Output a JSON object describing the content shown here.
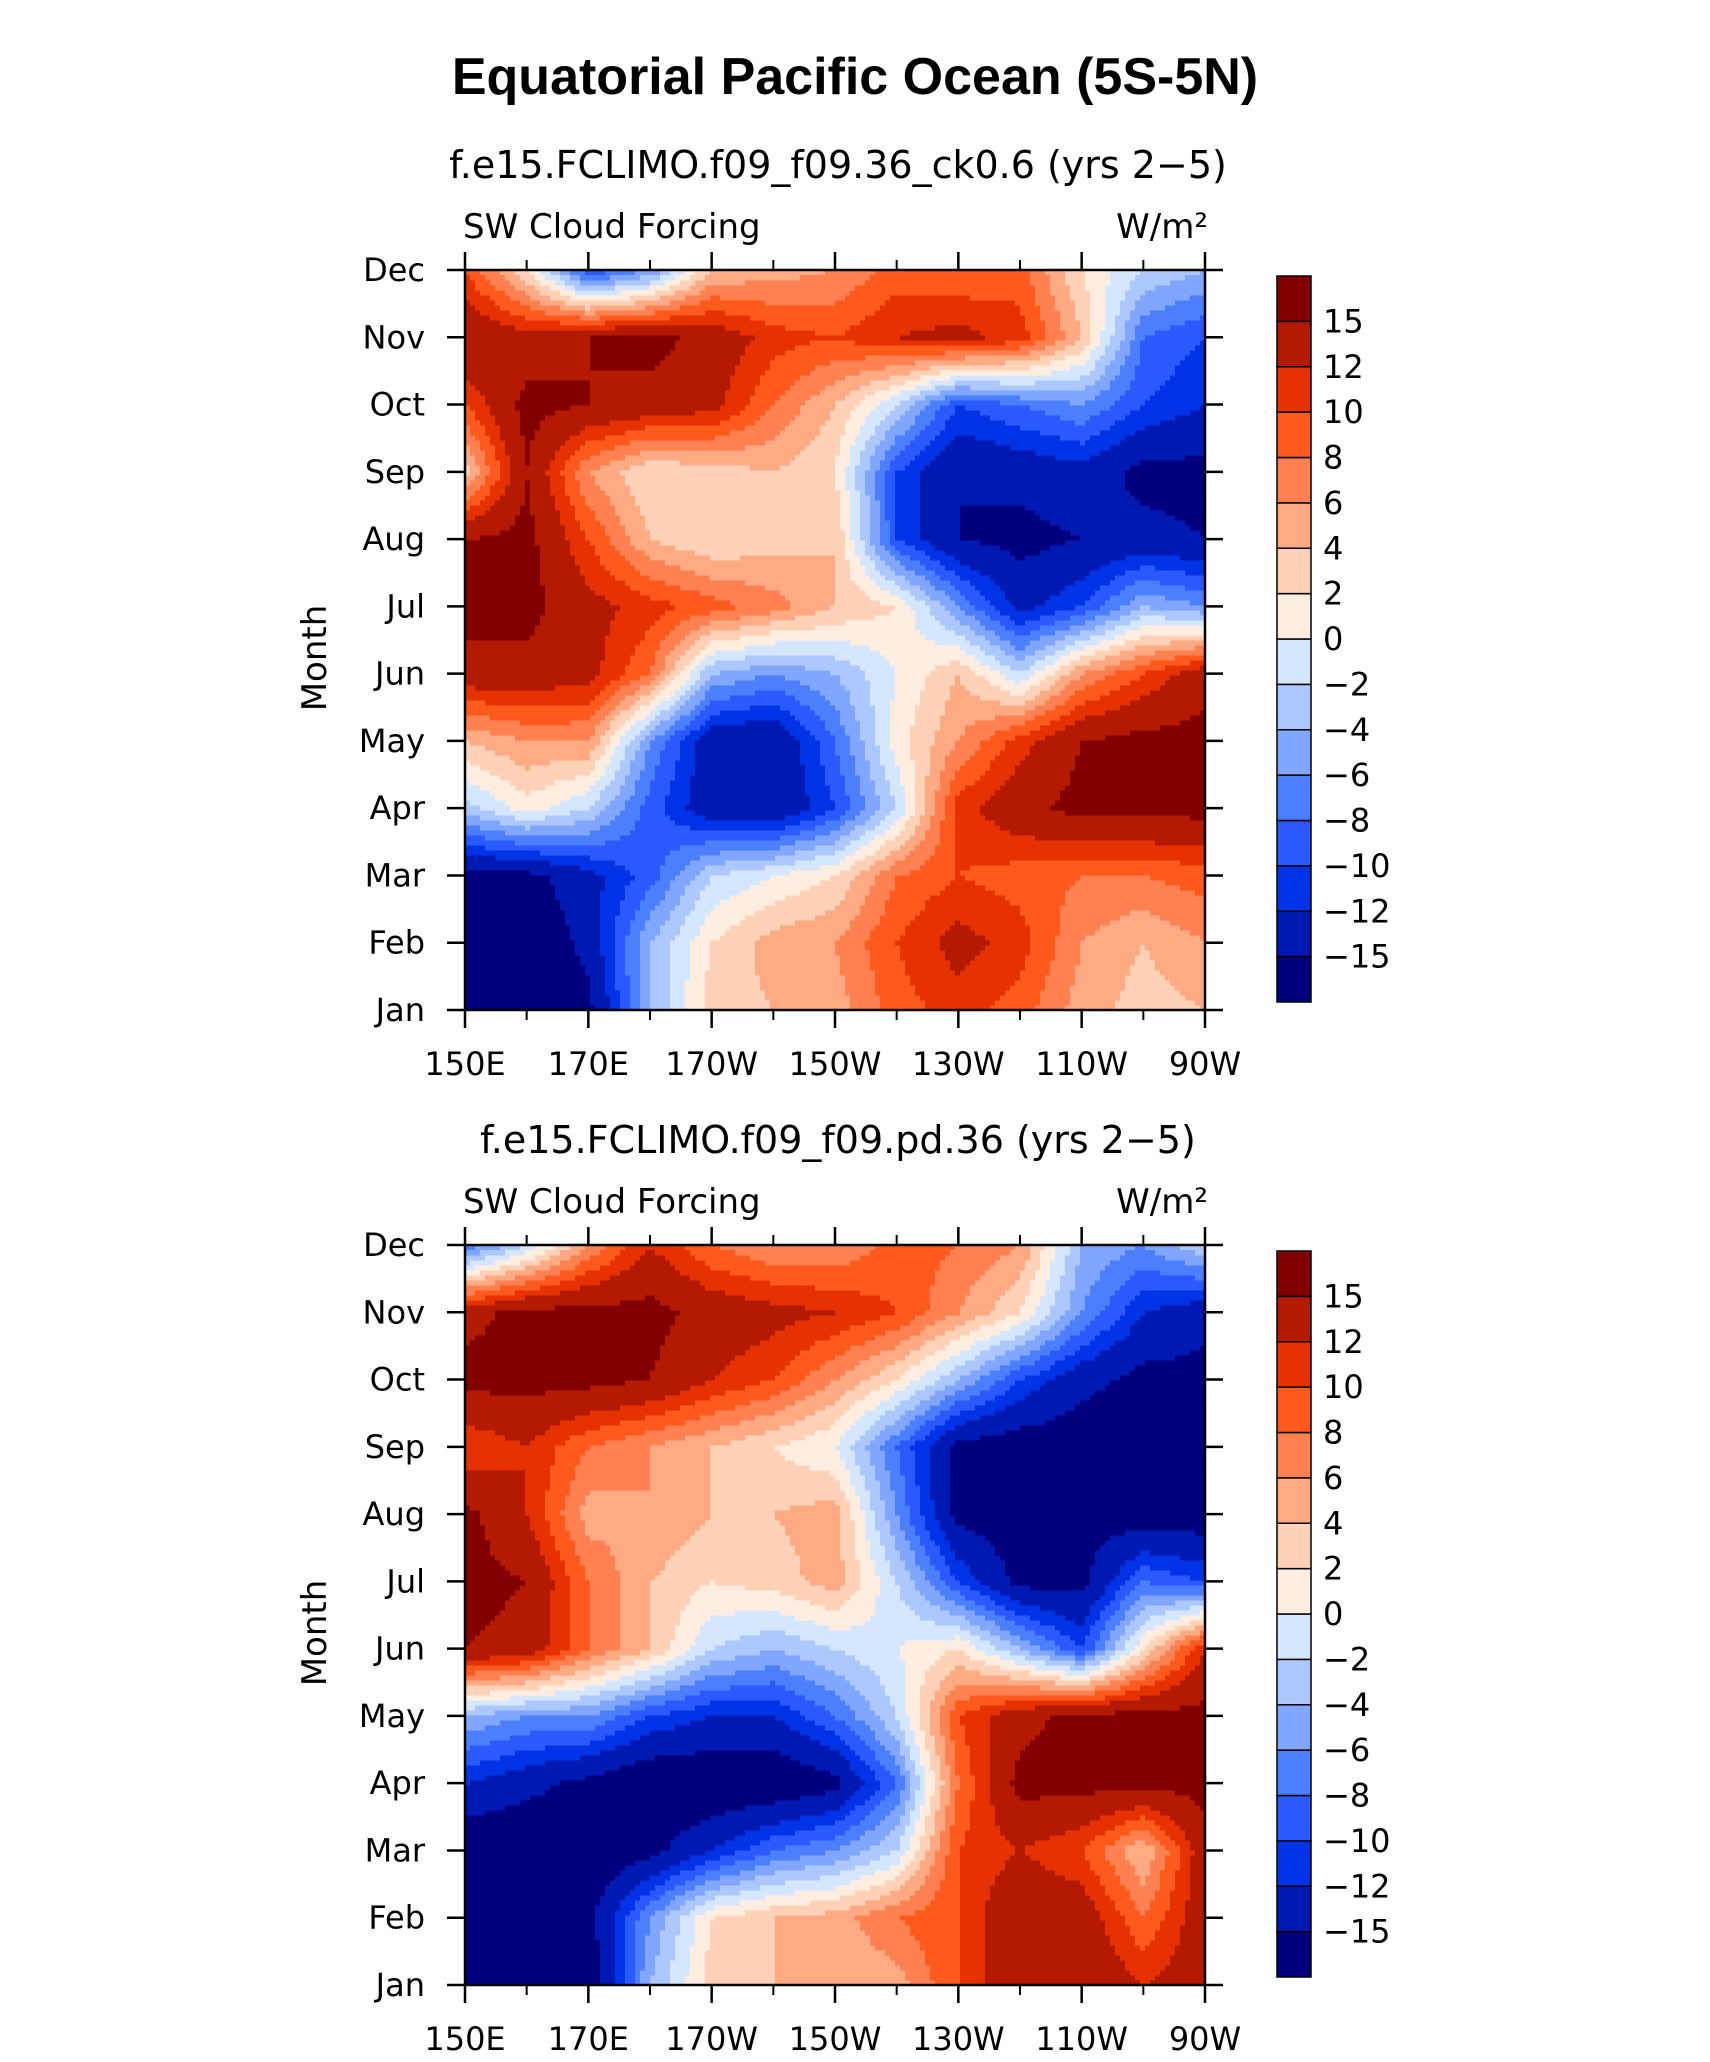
{
  "figure_title": "Equatorial Pacific Ocean (5S-5N)",
  "panels": [
    {
      "subtitle": "f.e15.FCLIMO.f09_f09.36_ck0.6 (yrs 2−5)",
      "variable": "SW Cloud Forcing",
      "units": "W/m²",
      "ylabel": "Month"
    },
    {
      "subtitle": "f.e15.FCLIMO.f09_f09.pd.36 (yrs 2−5)",
      "variable": "SW Cloud Forcing",
      "units": "W/m²",
      "ylabel": "Month"
    }
  ],
  "colors": [
    "#00007f",
    "#0019b3",
    "#0033e5",
    "#2959ff",
    "#4c7fff",
    "#80a6ff",
    "#adc8ff",
    "#d5e6ff",
    "#ffeee0",
    "#ffd2b7",
    "#ffaa83",
    "#ff8050",
    "#ff5a1e",
    "#e63200",
    "#b31a00",
    "#830000"
  ],
  "chart_data": [
    {
      "type": "heatmap",
      "title": "f.e15.FCLIMO.f09_f09.36_ck0.6 (yrs 2−5)",
      "xlabel": "",
      "ylabel": "Month",
      "x_ticks": [
        "150E",
        "170E",
        "170W",
        "150W",
        "130W",
        "110W",
        "90W"
      ],
      "x": [
        150,
        160,
        170,
        180,
        190,
        200,
        210,
        220,
        230,
        240,
        250,
        260,
        270
      ],
      "y": [
        "Jan",
        "Feb",
        "Mar",
        "Apr",
        "May",
        "Jun",
        "Jul",
        "Aug",
        "Sep",
        "Oct",
        "Nov",
        "Dec"
      ],
      "colorbar_levels": [
        "−15",
        "−12",
        "−10",
        "−8",
        "−6",
        "−4",
        "−2",
        "0",
        "2",
        "4",
        "6",
        "8",
        "10",
        "12",
        "15"
      ],
      "z": [
        [
          -18,
          -18,
          -16,
          -4,
          3,
          4,
          5,
          9,
          11,
          9,
          5,
          3,
          4
        ],
        [
          -18,
          -18,
          -14,
          -4,
          2,
          5,
          6,
          10,
          13,
          11,
          6,
          4,
          6
        ],
        [
          -16,
          -16,
          -13,
          -9,
          -2,
          0,
          2,
          8,
          10,
          9,
          8,
          8,
          9
        ],
        [
          -3,
          1,
          -2,
          -9,
          -14,
          -15,
          -10,
          -2,
          11,
          14,
          16,
          16,
          16
        ],
        [
          4,
          6,
          6,
          -6,
          -14,
          -15,
          -8,
          1,
          6,
          11,
          15,
          16,
          16
        ],
        [
          14,
          14,
          13,
          8,
          -4,
          -6,
          -4,
          0,
          4,
          -2,
          6,
          10,
          14
        ],
        [
          16,
          16,
          13,
          11,
          9,
          7,
          4,
          2,
          -6,
          -13,
          -10,
          -4,
          -6
        ],
        [
          15,
          16,
          10,
          4,
          2,
          3,
          4,
          -10,
          -15,
          -16,
          -15,
          -14,
          -15
        ],
        [
          3,
          15,
          6,
          2,
          3,
          4,
          2,
          -10,
          -15,
          -14,
          -13,
          -16,
          -16
        ],
        [
          10,
          16,
          15,
          14,
          13,
          8,
          4,
          -2,
          -10,
          -8,
          -6,
          -10,
          -12
        ],
        [
          15,
          13,
          15,
          16,
          14,
          11,
          10,
          12,
          13,
          11,
          4,
          -8,
          -10
        ],
        [
          10,
          2,
          -10,
          -6,
          4,
          5,
          6,
          9,
          8,
          9,
          2,
          -2,
          -4
        ]
      ]
    },
    {
      "type": "heatmap",
      "title": "f.e15.FCLIMO.f09_f09.pd.36 (yrs 2−5)",
      "xlabel": "",
      "ylabel": "Month",
      "x_ticks": [
        "150E",
        "170E",
        "170W",
        "150W",
        "130W",
        "110W",
        "90W"
      ],
      "x": [
        150,
        160,
        170,
        180,
        190,
        200,
        210,
        220,
        230,
        240,
        250,
        260,
        270
      ],
      "y": [
        "Jan",
        "Feb",
        "Mar",
        "Apr",
        "May",
        "Jun",
        "Jul",
        "Aug",
        "Sep",
        "Oct",
        "Nov",
        "Dec"
      ],
      "colorbar_levels": [
        "−15",
        "−12",
        "−10",
        "−8",
        "−6",
        "−4",
        "−2",
        "0",
        "2",
        "4",
        "6",
        "8",
        "10",
        "12",
        "15"
      ],
      "z": [
        [
          -18,
          -18,
          -18,
          -4,
          3,
          4,
          4,
          5,
          10,
          15,
          15,
          12,
          14
        ],
        [
          -18,
          -18,
          -16,
          -6,
          2,
          4,
          5,
          8,
          10,
          15,
          14,
          8,
          14
        ],
        [
          -18,
          -18,
          -18,
          -16,
          -12,
          -8,
          -6,
          -2,
          10,
          12,
          10,
          4,
          14
        ],
        [
          -12,
          -14,
          -16,
          -18,
          -18,
          -18,
          -16,
          -8,
          8,
          16,
          16,
          16,
          16
        ],
        [
          -4,
          -6,
          -6,
          -10,
          -12,
          -12,
          -8,
          -2,
          10,
          14,
          16,
          16,
          16
        ],
        [
          15,
          14,
          8,
          4,
          -2,
          -4,
          -2,
          0,
          2,
          -4,
          -10,
          2,
          12
        ],
        [
          16,
          15,
          8,
          4,
          2,
          3,
          5,
          -2,
          -10,
          -16,
          -16,
          -8,
          -10
        ],
        [
          16,
          12,
          5,
          6,
          4,
          4,
          5,
          -6,
          -16,
          -17,
          -16,
          -17,
          -17
        ],
        [
          10,
          12,
          8,
          6,
          4,
          2,
          0,
          -8,
          -16,
          -17,
          -17,
          -18,
          -18
        ],
        [
          16,
          16,
          16,
          15,
          12,
          10,
          6,
          2,
          -4,
          -10,
          -14,
          -16,
          -16
        ],
        [
          14,
          16,
          16,
          16,
          14,
          13,
          12,
          10,
          6,
          2,
          -6,
          -12,
          -14
        ],
        [
          -8,
          -2,
          6,
          12,
          8,
          6,
          6,
          9,
          8,
          6,
          -4,
          -6,
          -2
        ]
      ]
    }
  ]
}
